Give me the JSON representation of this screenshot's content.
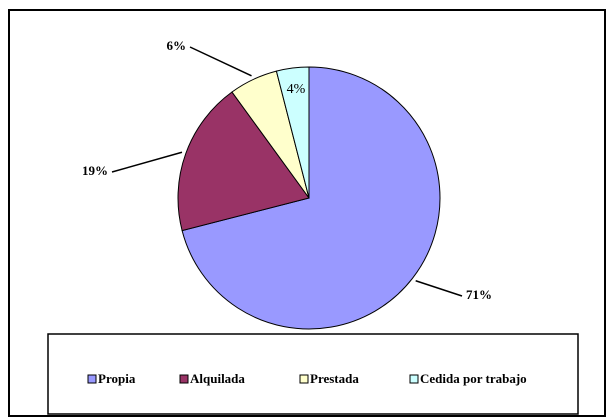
{
  "chart_data": {
    "type": "pie",
    "categories": [
      "Propia",
      "Alquilada",
      "Prestada",
      "Cedida por trabajo"
    ],
    "values": [
      71,
      19,
      6,
      4
    ],
    "value_labels": [
      "71%",
      "19%",
      "6%",
      "4%"
    ],
    "colors": [
      "#9999ff",
      "#993366",
      "#ffffcc",
      "#ccffff"
    ],
    "legend": "bottom"
  }
}
